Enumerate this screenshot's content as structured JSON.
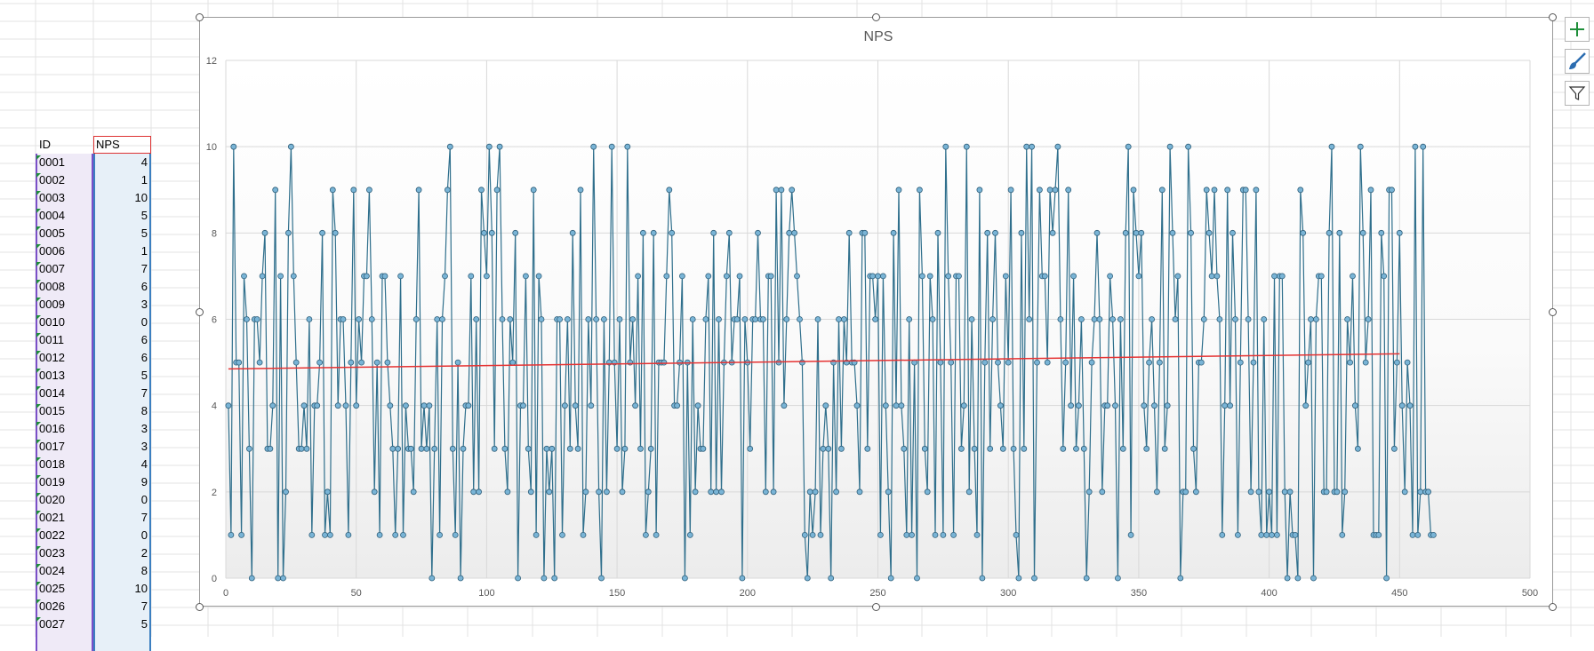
{
  "sheet": {
    "header_id": "ID",
    "header_nps": "NPS",
    "rows": [
      {
        "id": "0001",
        "nps": "4"
      },
      {
        "id": "0002",
        "nps": "1"
      },
      {
        "id": "0003",
        "nps": "10"
      },
      {
        "id": "0004",
        "nps": "5"
      },
      {
        "id": "0005",
        "nps": "5"
      },
      {
        "id": "0006",
        "nps": "1"
      },
      {
        "id": "0007",
        "nps": "7"
      },
      {
        "id": "0008",
        "nps": "6"
      },
      {
        "id": "0009",
        "nps": "3"
      },
      {
        "id": "0010",
        "nps": "0"
      },
      {
        "id": "0011",
        "nps": "6"
      },
      {
        "id": "0012",
        "nps": "6"
      },
      {
        "id": "0013",
        "nps": "5"
      },
      {
        "id": "0014",
        "nps": "7"
      },
      {
        "id": "0015",
        "nps": "8"
      },
      {
        "id": "0016",
        "nps": "3"
      },
      {
        "id": "0017",
        "nps": "3"
      },
      {
        "id": "0018",
        "nps": "4"
      },
      {
        "id": "0019",
        "nps": "9"
      },
      {
        "id": "0020",
        "nps": "0"
      },
      {
        "id": "0021",
        "nps": "7"
      },
      {
        "id": "0022",
        "nps": "0"
      },
      {
        "id": "0023",
        "nps": "2"
      },
      {
        "id": "0024",
        "nps": "8"
      },
      {
        "id": "0025",
        "nps": "10"
      },
      {
        "id": "0026",
        "nps": "7"
      },
      {
        "id": "0027",
        "nps": "5"
      }
    ]
  },
  "chart_data": {
    "type": "scatter",
    "title": "NPS",
    "xlabel": "",
    "ylabel": "",
    "xlim": [
      0,
      500
    ],
    "ylim": [
      0,
      12
    ],
    "x_ticks": [
      0,
      50,
      100,
      150,
      200,
      250,
      300,
      350,
      400,
      450,
      500
    ],
    "y_ticks": [
      0,
      2,
      4,
      6,
      8,
      10,
      12
    ],
    "grid": true,
    "legend": "none",
    "series": [
      {
        "x_start": 1,
        "values": [
          4,
          1,
          10,
          5,
          5,
          1,
          7,
          6,
          3,
          0,
          6,
          6,
          5,
          7,
          8,
          3,
          3,
          4,
          9,
          0,
          7,
          0,
          2,
          8,
          10,
          7,
          5,
          3,
          3,
          4,
          3,
          6,
          1,
          4,
          4,
          5,
          8,
          1,
          2,
          1,
          9,
          8,
          4,
          6,
          6,
          4,
          1,
          5,
          9,
          4,
          6,
          5,
          7,
          7,
          9,
          6,
          2,
          5,
          1,
          7,
          7,
          5,
          4,
          3,
          1,
          3,
          7,
          1,
          4,
          3,
          3,
          2,
          6,
          9,
          3,
          4,
          3,
          4,
          0,
          3,
          6,
          1,
          6,
          7,
          9,
          10,
          3,
          1,
          5,
          0,
          3,
          4,
          4,
          7,
          2,
          6,
          2,
          9,
          8,
          7,
          10,
          8,
          3,
          9,
          10,
          6,
          3,
          2,
          6,
          5,
          8,
          0,
          4,
          4,
          7,
          3,
          2,
          9,
          1,
          7,
          6,
          0,
          3,
          2,
          3,
          0,
          6,
          6,
          1,
          4,
          6,
          3,
          8,
          4,
          3,
          9,
          1,
          2,
          6,
          4,
          10,
          6,
          2,
          0,
          6,
          2,
          5,
          10,
          5,
          3,
          6,
          2,
          3,
          10,
          5,
          6,
          4,
          7,
          3,
          8,
          1,
          2,
          3,
          8,
          1,
          5,
          5,
          5,
          7,
          9,
          8,
          4,
          4,
          5,
          7,
          0,
          5,
          1,
          6,
          2,
          4,
          3,
          3,
          6,
          7,
          2,
          8,
          2,
          6,
          2,
          5,
          7,
          8,
          5,
          6,
          6,
          7,
          0,
          6,
          5,
          3,
          6,
          6,
          8,
          6,
          6,
          2,
          7,
          7,
          2,
          9,
          5,
          9,
          4,
          6,
          8,
          9,
          8,
          7,
          6,
          5,
          1,
          0,
          2,
          1,
          2,
          6,
          1,
          3,
          4,
          3,
          0,
          5,
          2,
          6,
          3,
          6,
          5,
          8,
          5,
          5,
          4,
          2,
          8,
          8,
          3,
          7,
          7,
          6,
          7,
          1,
          7,
          4,
          2,
          0,
          8,
          4,
          9,
          4,
          3,
          1,
          6,
          1,
          5,
          0,
          9,
          7,
          3,
          2,
          7,
          6,
          1,
          8,
          5,
          1,
          10,
          7,
          5,
          1,
          7,
          7,
          3,
          4,
          10,
          2,
          6,
          3,
          1,
          9,
          0,
          5,
          8,
          3,
          6,
          8,
          5,
          4,
          3,
          7,
          5,
          9,
          3,
          1,
          0,
          8,
          3,
          10,
          6,
          10,
          0,
          5,
          9,
          7,
          7,
          5,
          9,
          8,
          9,
          10,
          6,
          3,
          5,
          9,
          4,
          7,
          3,
          4,
          6,
          3,
          0,
          2,
          5,
          6,
          8,
          6,
          2,
          4,
          4,
          7,
          6,
          4,
          0,
          6,
          3,
          8,
          10,
          1,
          9,
          8,
          7,
          8,
          4,
          3,
          5,
          6,
          4,
          2,
          5,
          9,
          3,
          4,
          10,
          8,
          6,
          7,
          0,
          2,
          2,
          10,
          8,
          3,
          2,
          5,
          5,
          6,
          9,
          8,
          7,
          9,
          7,
          6,
          1,
          4,
          9,
          4,
          8,
          6,
          1,
          5,
          9,
          9,
          6,
          2,
          5,
          9,
          2,
          1,
          6,
          1,
          2,
          1,
          7,
          1,
          7,
          7,
          2,
          0,
          2,
          1,
          1,
          0,
          9,
          8,
          4,
          5,
          6,
          0,
          6,
          7,
          7,
          2,
          2,
          8,
          10,
          2,
          2,
          8,
          1,
          2,
          6,
          5,
          7,
          4,
          3,
          10,
          8,
          5,
          6,
          9,
          1,
          1,
          1,
          8,
          7,
          0,
          9,
          9,
          3,
          5,
          8,
          4,
          2,
          5,
          4,
          1,
          10,
          1,
          2,
          10,
          2,
          2,
          1,
          1
        ]
      }
    ],
    "trendline": {
      "x": [
        1,
        450
      ],
      "y": [
        4.85,
        5.2
      ]
    },
    "colors": {
      "line": "#2f6f8c",
      "marker": "#79b4d6",
      "marker_edge": "#2f5f7a",
      "trend": "#e53333"
    }
  }
}
